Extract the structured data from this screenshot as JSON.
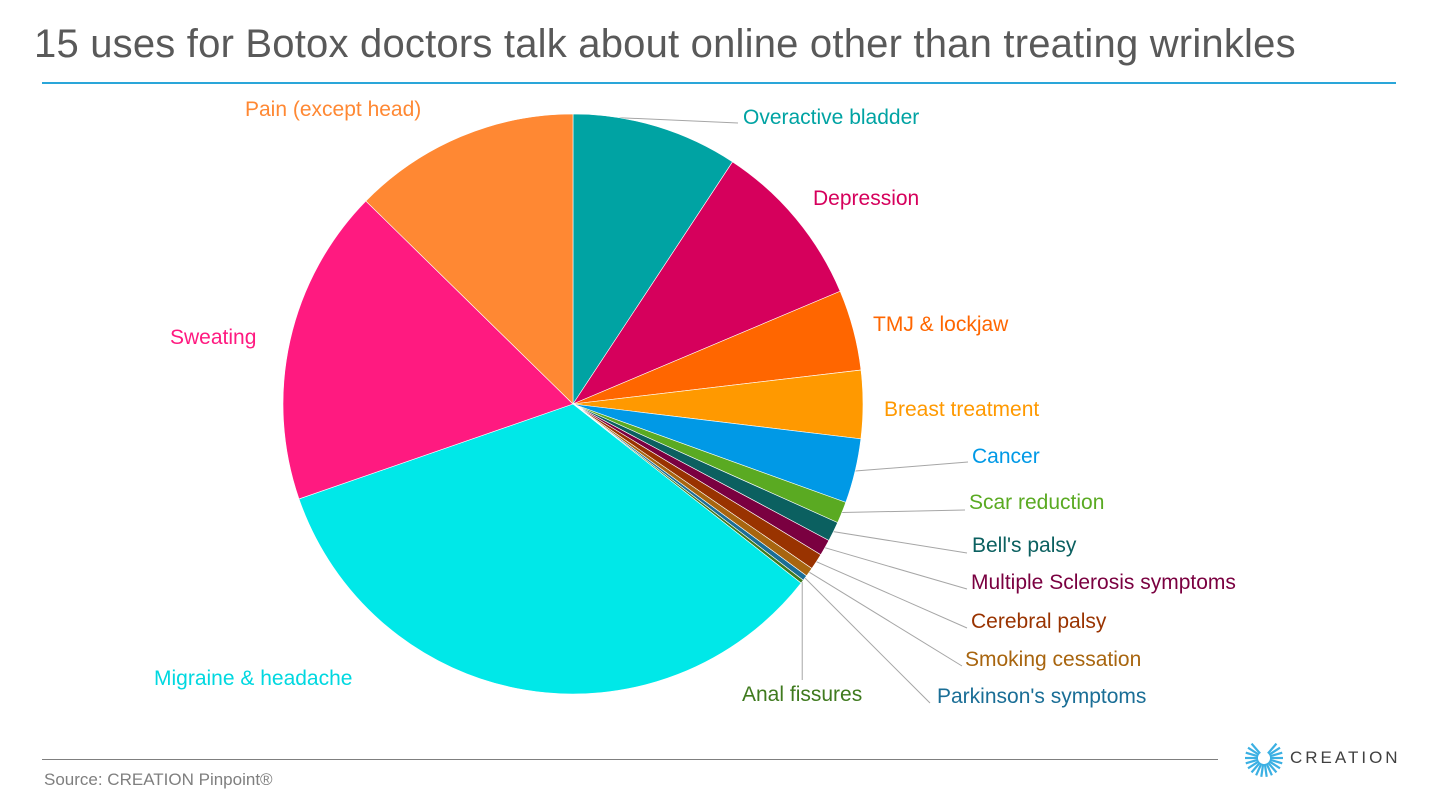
{
  "title": "15 uses for Botox doctors talk about online other than treating wrinkles",
  "source": "Source: CREATION Pinpoint®",
  "logo": {
    "text": "CREATION",
    "color": "#3BB0E3"
  },
  "chart_data": {
    "type": "pie",
    "title": "15 uses for Botox doctors talk about online other than treating wrinkles",
    "start_angle_deg": 0,
    "direction": "clockwise",
    "slices": [
      {
        "label": "Overactive bladder",
        "value": 9.3,
        "color": "#00A3A3"
      },
      {
        "label": "Depression",
        "value": 9.4,
        "color": "#D6005C"
      },
      {
        "label": "TMJ & lockjaw",
        "value": 4.5,
        "color": "#FF6600"
      },
      {
        "label": "Breast treatment",
        "value": 3.8,
        "color": "#FF9900"
      },
      {
        "label": "Cancer",
        "value": 3.6,
        "color": "#0099E6"
      },
      {
        "label": "Scar reduction",
        "value": 1.2,
        "color": "#5AAA22"
      },
      {
        "label": "Bell's palsy",
        "value": 1.1,
        "color": "#0B6060"
      },
      {
        "label": "Multiple Sclerosis symptoms",
        "value": 0.9,
        "color": "#7A0040"
      },
      {
        "label": "Cerebral palsy",
        "value": 0.9,
        "color": "#993300"
      },
      {
        "label": "Smoking cessation",
        "value": 0.5,
        "color": "#A8650F"
      },
      {
        "label": "Parkinson's symptoms",
        "value": 0.3,
        "color": "#1A6E96"
      },
      {
        "label": "Anal fissures",
        "value": 0.2,
        "color": "#3F7A1E"
      },
      {
        "label": "Migraine & headache",
        "value": 34.2,
        "color": "#00E8E8"
      },
      {
        "label": "Sweating",
        "value": 17.7,
        "color": "#FF1A80"
      },
      {
        "label": "Pain (except head)",
        "value": 12.7,
        "color": "#FF8833"
      }
    ],
    "legend": "none (data labels outside slices)"
  }
}
